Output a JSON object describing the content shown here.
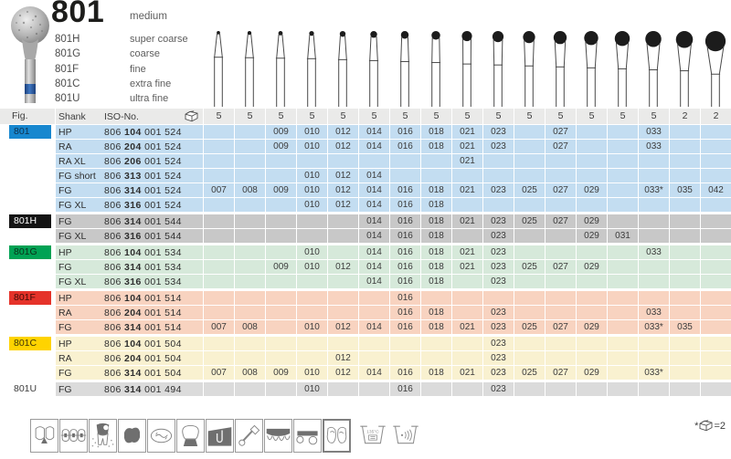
{
  "title": {
    "family": "801",
    "grade": "medium",
    "variants": [
      {
        "code": "801H",
        "grade": "super coarse"
      },
      {
        "code": "801G",
        "grade": "coarse"
      },
      {
        "code": "801F",
        "grade": "fine"
      },
      {
        "code": "801C",
        "grade": "extra fine"
      },
      {
        "code": "801U",
        "grade": "ultra fine"
      }
    ]
  },
  "table": {
    "fig_header": "Fig.",
    "shank_header": "Shank",
    "iso_header": "ISO-No.",
    "sizes": [
      "007",
      "008",
      "009",
      "010",
      "012",
      "014",
      "016",
      "018",
      "021",
      "023",
      "025",
      "027",
      "029",
      "031",
      "033",
      "035",
      "042"
    ],
    "pack_qty": [
      "5",
      "5",
      "5",
      "5",
      "5",
      "5",
      "5",
      "5",
      "5",
      "5",
      "5",
      "5",
      "5",
      "5",
      "5",
      "2",
      "2"
    ],
    "groups": [
      {
        "fig": "801",
        "chip_bg": "#1787cf",
        "chip_color": "#10314d",
        "row_bg": "#c3ddf1",
        "rows": [
          {
            "shank": "HP",
            "iso": [
              "806",
              "104",
              "001",
              "524"
            ],
            "cells": [
              "",
              "",
              "009",
              "010",
              "012",
              "014",
              "016",
              "018",
              "021",
              "023",
              "",
              "027",
              "",
              "",
              "033",
              "",
              ""
            ]
          },
          {
            "shank": "RA",
            "iso": [
              "806",
              "204",
              "001",
              "524"
            ],
            "cells": [
              "",
              "",
              "009",
              "010",
              "012",
              "014",
              "016",
              "018",
              "021",
              "023",
              "",
              "027",
              "",
              "",
              "033",
              "",
              ""
            ]
          },
          {
            "shank": "RA XL",
            "iso": [
              "806",
              "206",
              "001",
              "524"
            ],
            "cells": [
              "",
              "",
              "",
              "",
              "",
              "",
              "",
              "",
              "021",
              "",
              "",
              "",
              "",
              "",
              "",
              "",
              ""
            ]
          },
          {
            "shank": "FG short",
            "iso": [
              "806",
              "313",
              "001",
              "524"
            ],
            "cells": [
              "",
              "",
              "",
              "010",
              "012",
              "014",
              "",
              "",
              "",
              "",
              "",
              "",
              "",
              "",
              "",
              "",
              ""
            ]
          },
          {
            "shank": "FG",
            "iso": [
              "806",
              "314",
              "001",
              "524"
            ],
            "cells": [
              "007",
              "008",
              "009",
              "010",
              "012",
              "014",
              "016",
              "018",
              "021",
              "023",
              "025",
              "027",
              "029",
              "",
              "033*",
              "035",
              "042"
            ]
          },
          {
            "shank": "FG XL",
            "iso": [
              "806",
              "316",
              "001",
              "524"
            ],
            "cells": [
              "",
              "",
              "",
              "010",
              "012",
              "014",
              "016",
              "018",
              "",
              "",
              "",
              "",
              "",
              "",
              "",
              "",
              ""
            ]
          }
        ]
      },
      {
        "fig": "801H",
        "chip_bg": "#141414",
        "chip_color": "#ffffff",
        "row_bg": "#c8c8c8",
        "rows": [
          {
            "shank": "FG",
            "iso": [
              "806",
              "314",
              "001",
              "544"
            ],
            "cells": [
              "",
              "",
              "",
              "",
              "",
              "014",
              "016",
              "018",
              "021",
              "023",
              "025",
              "027",
              "029",
              "",
              "",
              "",
              ""
            ]
          },
          {
            "shank": "FG XL",
            "iso": [
              "806",
              "316",
              "001",
              "544"
            ],
            "cells": [
              "",
              "",
              "",
              "",
              "",
              "014",
              "016",
              "018",
              "",
              "023",
              "",
              "",
              "029",
              "031",
              "",
              "",
              ""
            ]
          }
        ]
      },
      {
        "fig": "801G",
        "chip_bg": "#00a254",
        "chip_color": "#0c2d18",
        "row_bg": "#d6e9da",
        "rows": [
          {
            "shank": "HP",
            "iso": [
              "806",
              "104",
              "001",
              "534"
            ],
            "cells": [
              "",
              "",
              "",
              "010",
              "",
              "014",
              "016",
              "018",
              "021",
              "023",
              "",
              "",
              "",
              "",
              "033",
              "",
              ""
            ]
          },
          {
            "shank": "FG",
            "iso": [
              "806",
              "314",
              "001",
              "534"
            ],
            "cells": [
              "",
              "",
              "009",
              "010",
              "012",
              "014",
              "016",
              "018",
              "021",
              "023",
              "025",
              "027",
              "029",
              "",
              "",
              "",
              ""
            ]
          },
          {
            "shank": "FG XL",
            "iso": [
              "806",
              "316",
              "001",
              "534"
            ],
            "cells": [
              "",
              "",
              "",
              "",
              "",
              "014",
              "016",
              "018",
              "",
              "023",
              "",
              "",
              "",
              "",
              "",
              "",
              ""
            ]
          }
        ]
      },
      {
        "fig": "801F",
        "chip_bg": "#e5332a",
        "chip_color": "#3d0d08",
        "row_bg": "#f8d3c0",
        "rows": [
          {
            "shank": "HP",
            "iso": [
              "806",
              "104",
              "001",
              "514"
            ],
            "cells": [
              "",
              "",
              "",
              "",
              "",
              "",
              "016",
              "",
              "",
              "",
              "",
              "",
              "",
              "",
              "",
              "",
              ""
            ]
          },
          {
            "shank": "RA",
            "iso": [
              "806",
              "204",
              "001",
              "514"
            ],
            "cells": [
              "",
              "",
              "",
              "",
              "",
              "",
              "016",
              "018",
              "",
              "023",
              "",
              "",
              "",
              "",
              "033",
              "",
              ""
            ]
          },
          {
            "shank": "FG",
            "iso": [
              "806",
              "314",
              "001",
              "514"
            ],
            "cells": [
              "007",
              "008",
              "",
              "010",
              "012",
              "014",
              "016",
              "018",
              "021",
              "023",
              "025",
              "027",
              "029",
              "",
              "033*",
              "035",
              ""
            ]
          }
        ]
      },
      {
        "fig": "801C",
        "chip_bg": "#ffd300",
        "chip_color": "#403505",
        "row_bg": "#f9f1d0",
        "rows": [
          {
            "shank": "HP",
            "iso": [
              "806",
              "104",
              "001",
              "504"
            ],
            "cells": [
              "",
              "",
              "",
              "",
              "",
              "",
              "",
              "",
              "",
              "023",
              "",
              "",
              "",
              "",
              "",
              "",
              ""
            ]
          },
          {
            "shank": "RA",
            "iso": [
              "806",
              "204",
              "001",
              "504"
            ],
            "cells": [
              "",
              "",
              "",
              "",
              "012",
              "",
              "",
              "",
              "",
              "023",
              "",
              "",
              "",
              "",
              "",
              "",
              ""
            ]
          },
          {
            "shank": "FG",
            "iso": [
              "806",
              "314",
              "001",
              "504"
            ],
            "cells": [
              "007",
              "008",
              "009",
              "010",
              "012",
              "014",
              "016",
              "018",
              "021",
              "023",
              "025",
              "027",
              "029",
              "",
              "033*",
              "",
              ""
            ]
          }
        ]
      },
      {
        "fig": "801U",
        "chip_bg": "#ffffff",
        "chip_color": "#3c3c3c",
        "row_bg": "#dbdbdb",
        "rows": [
          {
            "shank": "FG",
            "iso": [
              "806",
              "314",
              "001",
              "494"
            ],
            "cells": [
              "",
              "",
              "",
              "010",
              "",
              "",
              "016",
              "",
              "",
              "023",
              "",
              "",
              "",
              "",
              "",
              "",
              ""
            ]
          }
        ]
      }
    ]
  },
  "applications": [
    {
      "name": "anterior-restoration"
    },
    {
      "name": "orthodontics"
    },
    {
      "name": "caries-excavation"
    },
    {
      "name": "cavity-preparation"
    },
    {
      "name": "occlusal-adjustment"
    },
    {
      "name": "crown-preparation"
    },
    {
      "name": "filling-removal"
    },
    {
      "name": "laboratory"
    },
    {
      "name": "veneers"
    },
    {
      "name": "model-casting"
    },
    {
      "name": "denture-acrylic",
      "selected": true
    }
  ],
  "trays": [
    {
      "name": "steam-sterilizable-135c",
      "label": "135°C"
    },
    {
      "name": "ultrasonic-cleanable"
    }
  ],
  "footnote": {
    "star": "*",
    "suffix": "=2"
  }
}
